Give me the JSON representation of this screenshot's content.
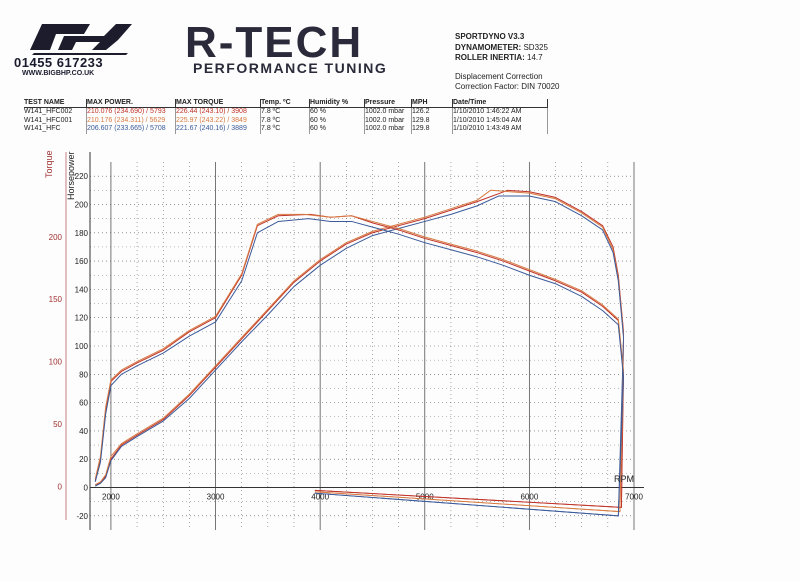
{
  "header": {
    "logo_text": "R",
    "phone": "01455 617233",
    "website": "WWW.BIGBHP.CO.UK",
    "brand": "R-TECH",
    "tagline": "PERFORMANCE TUNING"
  },
  "dyno_info": {
    "software": "SPORTDYNO V3.3",
    "dynamometer_label": "DYNAMOMETER:",
    "dynamometer_value": "SD325",
    "inertia_label": "ROLLER INERTIA:",
    "inertia_value": "14.7",
    "correction_title": "Displacement Correction",
    "correction_factor": "Correction Factor: DIN 70020"
  },
  "results_table": {
    "headers": [
      "TEST NAME",
      "MAX POWER.",
      "MAX TORQUE",
      "Temp. ºC",
      "Humidity %",
      "Pressure",
      "MPH",
      "Date/Time"
    ],
    "rows": [
      {
        "test": "W141_HFC002",
        "power": "210.076 (234.690) / 5793",
        "torque": "226.44 (243.10) / 3908",
        "temp": "7.8 ºC",
        "humidity": "60 %",
        "pressure": "1002.0 mbar",
        "mph": "126.2",
        "datetime": "1/10/2010  1:46:22 AM"
      },
      {
        "test": "W141_HFC001",
        "power": "210.176 (234.311) / 5629",
        "torque": "225.97 (243.22) / 3849",
        "temp": "7.8 ºC",
        "humidity": "60 %",
        "pressure": "1002.0 mbar",
        "mph": "129.8",
        "datetime": "1/10/2010  1:45:04 AM"
      },
      {
        "test": "W141_HFC",
        "power": "206.607 (233.665) / 5708",
        "torque": "221.67 (240.16) / 3889",
        "temp": "7.8 ºC",
        "humidity": "60 %",
        "pressure": "1002.0 mbar",
        "mph": "129.8",
        "datetime": "1/10/2010  1:43:49 AM"
      }
    ]
  },
  "colors": {
    "run1": "#c03328",
    "run2": "#d87a42",
    "run3": "#3b5a9a",
    "axis_left": "#a03030",
    "grid": "#555555"
  },
  "chart_data": {
    "type": "line",
    "xlabel": "RPM",
    "ylabel_left": "Torque",
    "ylabel_right": "Horsepower",
    "xlim": [
      1800,
      7000
    ],
    "ylim_hp": [
      -30,
      230
    ],
    "x_ticks": [
      "2000",
      "3000",
      "4000",
      "5000",
      "6000",
      "7000"
    ],
    "y_ticks_hp": [
      "-20",
      "0",
      "20",
      "40",
      "60",
      "80",
      "100",
      "120",
      "140",
      "160",
      "180",
      "200",
      "220"
    ],
    "y_ticks_torque": [
      "0",
      "50",
      "100",
      "150",
      "200"
    ],
    "grid": true,
    "series": [
      {
        "name": "W141_HFC002",
        "quantity": "horsepower",
        "x": [
          1850,
          1900,
          1950,
          2000,
          2100,
          2250,
          2500,
          2750,
          3000,
          3250,
          3500,
          3750,
          4000,
          4250,
          4500,
          4750,
          5000,
          5250,
          5500,
          5793,
          6000,
          6250,
          6500,
          6700,
          6800,
          6850,
          6900
        ],
        "y": [
          2,
          3,
          8,
          20,
          30,
          37,
          48,
          65,
          85,
          105,
          125,
          145,
          160,
          172,
          180,
          185,
          190,
          196,
          202,
          210,
          209,
          205,
          195,
          185,
          170,
          150,
          110
        ]
      },
      {
        "name": "W141_HFC001",
        "quantity": "horsepower",
        "x": [
          1850,
          1900,
          1950,
          2000,
          2100,
          2250,
          2500,
          2750,
          3000,
          3250,
          3500,
          3750,
          4000,
          4250,
          4500,
          4750,
          5000,
          5250,
          5500,
          5629,
          6000,
          6250,
          6500,
          6700,
          6800,
          6850,
          6900
        ],
        "y": [
          2,
          4,
          9,
          22,
          31,
          38,
          49,
          66,
          86,
          106,
          126,
          146,
          161,
          173,
          181,
          186,
          191,
          197,
          203,
          210,
          208,
          204,
          194,
          184,
          168,
          148,
          108
        ]
      },
      {
        "name": "W141_HFC",
        "quantity": "horsepower",
        "x": [
          1850,
          1900,
          1950,
          2000,
          2100,
          2250,
          2500,
          2750,
          3000,
          3250,
          3500,
          3750,
          4000,
          4250,
          4500,
          4750,
          5000,
          5250,
          5500,
          5708,
          6000,
          6250,
          6500,
          6700,
          6800,
          6850,
          6900
        ],
        "y": [
          1,
          3,
          7,
          19,
          29,
          36,
          47,
          63,
          83,
          103,
          122,
          142,
          157,
          169,
          178,
          183,
          188,
          193,
          199,
          206,
          206,
          202,
          192,
          182,
          166,
          146,
          106
        ]
      },
      {
        "name": "W141_HFC002",
        "quantity": "torque",
        "x": [
          1850,
          1900,
          1950,
          2000,
          2100,
          2250,
          2500,
          2750,
          3000,
          3250,
          3400,
          3600,
          3908,
          4100,
          4300,
          4500,
          4750,
          5000,
          5250,
          5500,
          5750,
          6000,
          6250,
          6500,
          6700,
          6850,
          6900
        ],
        "y": [
          5,
          20,
          55,
          75,
          82,
          88,
          97,
          110,
          120,
          150,
          185,
          192,
          193,
          191,
          192,
          187,
          182,
          176,
          171,
          166,
          160,
          153,
          146,
          138,
          128,
          118,
          80
        ]
      },
      {
        "name": "W141_HFC001",
        "quantity": "torque",
        "x": [
          1850,
          1900,
          1950,
          2000,
          2100,
          2250,
          2500,
          2750,
          3000,
          3250,
          3400,
          3600,
          3849,
          4100,
          4300,
          4500,
          4750,
          5000,
          5250,
          5500,
          5750,
          6000,
          6250,
          6500,
          6700,
          6850,
          6900
        ],
        "y": [
          6,
          22,
          57,
          76,
          83,
          89,
          98,
          111,
          121,
          151,
          186,
          193,
          193,
          191,
          192,
          188,
          183,
          177,
          172,
          167,
          161,
          154,
          147,
          139,
          129,
          119,
          82
        ]
      },
      {
        "name": "W141_HFC",
        "quantity": "torque",
        "x": [
          1850,
          1900,
          1950,
          2000,
          2100,
          2250,
          2500,
          2750,
          3000,
          3250,
          3400,
          3600,
          3889,
          4100,
          4300,
          4500,
          4750,
          5000,
          5250,
          5500,
          5750,
          6000,
          6250,
          6500,
          6700,
          6850,
          6900
        ],
        "y": [
          4,
          18,
          52,
          72,
          80,
          86,
          95,
          107,
          117,
          146,
          180,
          188,
          190,
          188,
          188,
          184,
          179,
          173,
          168,
          163,
          157,
          150,
          144,
          135,
          125,
          115,
          78
        ]
      }
    ]
  }
}
